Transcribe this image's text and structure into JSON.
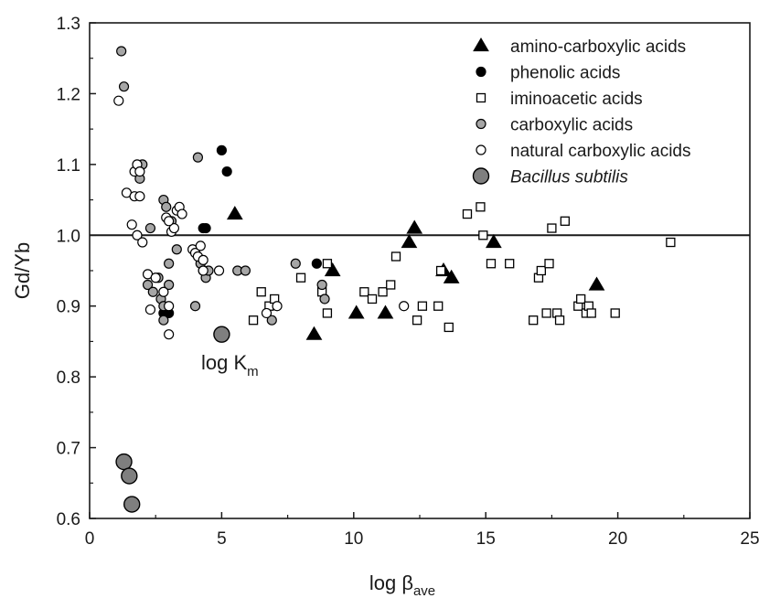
{
  "chart_data": {
    "type": "scatter",
    "title": "",
    "xlabel": {
      "main": "log β",
      "sub": "ave"
    },
    "ylabel": "Gd/Yb",
    "xlim": [
      0,
      25
    ],
    "ylim": [
      0.6,
      1.3
    ],
    "xticks": [
      "0",
      "5",
      "10",
      "15",
      "20",
      "25"
    ],
    "yticks": [
      "0.6",
      "0.7",
      "0.8",
      "0.9",
      "1.0",
      "1.1",
      "1.2",
      "1.3"
    ],
    "reference_line_y": 1.0,
    "grid": false,
    "legend_position": "top-right",
    "annotation": {
      "main": "log K",
      "sub": "m"
    },
    "series": [
      {
        "name": "amino-carboxylic acids",
        "marker": "triangle",
        "fill": "#000000",
        "stroke": "#000000",
        "points": [
          [
            5.5,
            1.03
          ],
          [
            8.5,
            0.86
          ],
          [
            9.2,
            0.95
          ],
          [
            10.1,
            0.89
          ],
          [
            11.2,
            0.89
          ],
          [
            12.1,
            0.99
          ],
          [
            12.3,
            1.01
          ],
          [
            13.4,
            0.95
          ],
          [
            13.7,
            0.94
          ],
          [
            15.3,
            0.99
          ],
          [
            19.2,
            0.93
          ]
        ]
      },
      {
        "name": "phenolic acids",
        "marker": "circle",
        "fill": "#000000",
        "stroke": "#000000",
        "points": [
          [
            4.3,
            1.01
          ],
          [
            4.4,
            1.01
          ],
          [
            5.0,
            1.12
          ],
          [
            5.2,
            1.09
          ],
          [
            8.6,
            0.96
          ],
          [
            2.8,
            0.89
          ],
          [
            3.0,
            0.89
          ]
        ]
      },
      {
        "name": "iminoacetic acids",
        "marker": "square",
        "fill": "#ffffff",
        "stroke": "#000000",
        "points": [
          [
            6.2,
            0.88
          ],
          [
            6.5,
            0.92
          ],
          [
            6.8,
            0.9
          ],
          [
            7.0,
            0.91
          ],
          [
            8.0,
            0.94
          ],
          [
            8.8,
            0.92
          ],
          [
            9.0,
            0.96
          ],
          [
            9.0,
            0.89
          ],
          [
            10.4,
            0.92
          ],
          [
            10.7,
            0.91
          ],
          [
            11.1,
            0.92
          ],
          [
            11.4,
            0.93
          ],
          [
            11.6,
            0.97
          ],
          [
            12.4,
            0.88
          ],
          [
            12.6,
            0.9
          ],
          [
            13.2,
            0.9
          ],
          [
            13.3,
            0.95
          ],
          [
            13.6,
            0.87
          ],
          [
            14.3,
            1.03
          ],
          [
            14.8,
            1.04
          ],
          [
            14.9,
            1.0
          ],
          [
            15.2,
            0.96
          ],
          [
            15.9,
            0.96
          ],
          [
            16.8,
            0.88
          ],
          [
            17.0,
            0.94
          ],
          [
            17.1,
            0.95
          ],
          [
            17.3,
            0.89
          ],
          [
            17.4,
            0.96
          ],
          [
            17.5,
            1.01
          ],
          [
            17.7,
            0.89
          ],
          [
            17.8,
            0.88
          ],
          [
            18.0,
            1.02
          ],
          [
            18.5,
            0.9
          ],
          [
            18.6,
            0.91
          ],
          [
            18.8,
            0.89
          ],
          [
            18.9,
            0.9
          ],
          [
            19.0,
            0.89
          ],
          [
            19.9,
            0.89
          ],
          [
            22.0,
            0.99
          ]
        ]
      },
      {
        "name": "carboxylic acids",
        "marker": "circle",
        "fill": "#a6a6a6",
        "stroke": "#000000",
        "points": [
          [
            1.2,
            1.26
          ],
          [
            1.3,
            1.21
          ],
          [
            2.0,
            1.1
          ],
          [
            1.9,
            1.08
          ],
          [
            2.3,
            1.01
          ],
          [
            2.8,
            1.05
          ],
          [
            2.9,
            1.04
          ],
          [
            3.1,
            1.02
          ],
          [
            2.2,
            0.93
          ],
          [
            2.4,
            0.92
          ],
          [
            2.6,
            0.94
          ],
          [
            2.7,
            0.91
          ],
          [
            2.8,
            0.9
          ],
          [
            2.8,
            0.88
          ],
          [
            3.0,
            0.96
          ],
          [
            3.0,
            0.93
          ],
          [
            3.3,
            0.98
          ],
          [
            4.1,
            1.11
          ],
          [
            4.2,
            0.96
          ],
          [
            4.3,
            0.95
          ],
          [
            4.4,
            0.94
          ],
          [
            4.5,
            0.95
          ],
          [
            4.0,
            0.9
          ],
          [
            5.6,
            0.95
          ],
          [
            5.9,
            0.95
          ],
          [
            7.8,
            0.96
          ],
          [
            8.8,
            0.93
          ],
          [
            8.9,
            0.91
          ],
          [
            6.9,
            0.88
          ]
        ]
      },
      {
        "name": "natural carboxylic acids",
        "marker": "circle",
        "fill": "#ffffff",
        "stroke": "#000000",
        "points": [
          [
            1.1,
            1.19
          ],
          [
            1.4,
            1.06
          ],
          [
            1.7,
            1.09
          ],
          [
            1.8,
            1.1
          ],
          [
            1.9,
            1.09
          ],
          [
            1.7,
            1.055
          ],
          [
            1.9,
            1.055
          ],
          [
            1.6,
            1.015
          ],
          [
            1.8,
            1.0
          ],
          [
            2.0,
            0.99
          ],
          [
            2.2,
            0.945
          ],
          [
            2.5,
            0.94
          ],
          [
            2.3,
            0.895
          ],
          [
            2.9,
            1.025
          ],
          [
            3.1,
            1.005
          ],
          [
            3.3,
            1.035
          ],
          [
            3.4,
            1.04
          ],
          [
            3.5,
            1.03
          ],
          [
            2.8,
            0.92
          ],
          [
            3.0,
            0.9
          ],
          [
            3.0,
            0.86
          ],
          [
            3.2,
            1.01
          ],
          [
            3.0,
            1.02
          ],
          [
            3.9,
            0.98
          ],
          [
            4.0,
            0.975
          ],
          [
            4.1,
            0.97
          ],
          [
            4.2,
            0.985
          ],
          [
            4.3,
            0.965
          ],
          [
            4.3,
            0.95
          ],
          [
            4.9,
            0.95
          ],
          [
            7.1,
            0.9
          ],
          [
            6.7,
            0.89
          ],
          [
            11.9,
            0.9
          ]
        ]
      },
      {
        "name": "Bacillus subtilis",
        "marker": "circle-large",
        "fill": "#7f7f7f",
        "stroke": "#000000",
        "points": [
          [
            1.3,
            0.68
          ],
          [
            1.5,
            0.66
          ],
          [
            1.6,
            0.62
          ],
          [
            5.0,
            0.86
          ]
        ]
      }
    ]
  }
}
